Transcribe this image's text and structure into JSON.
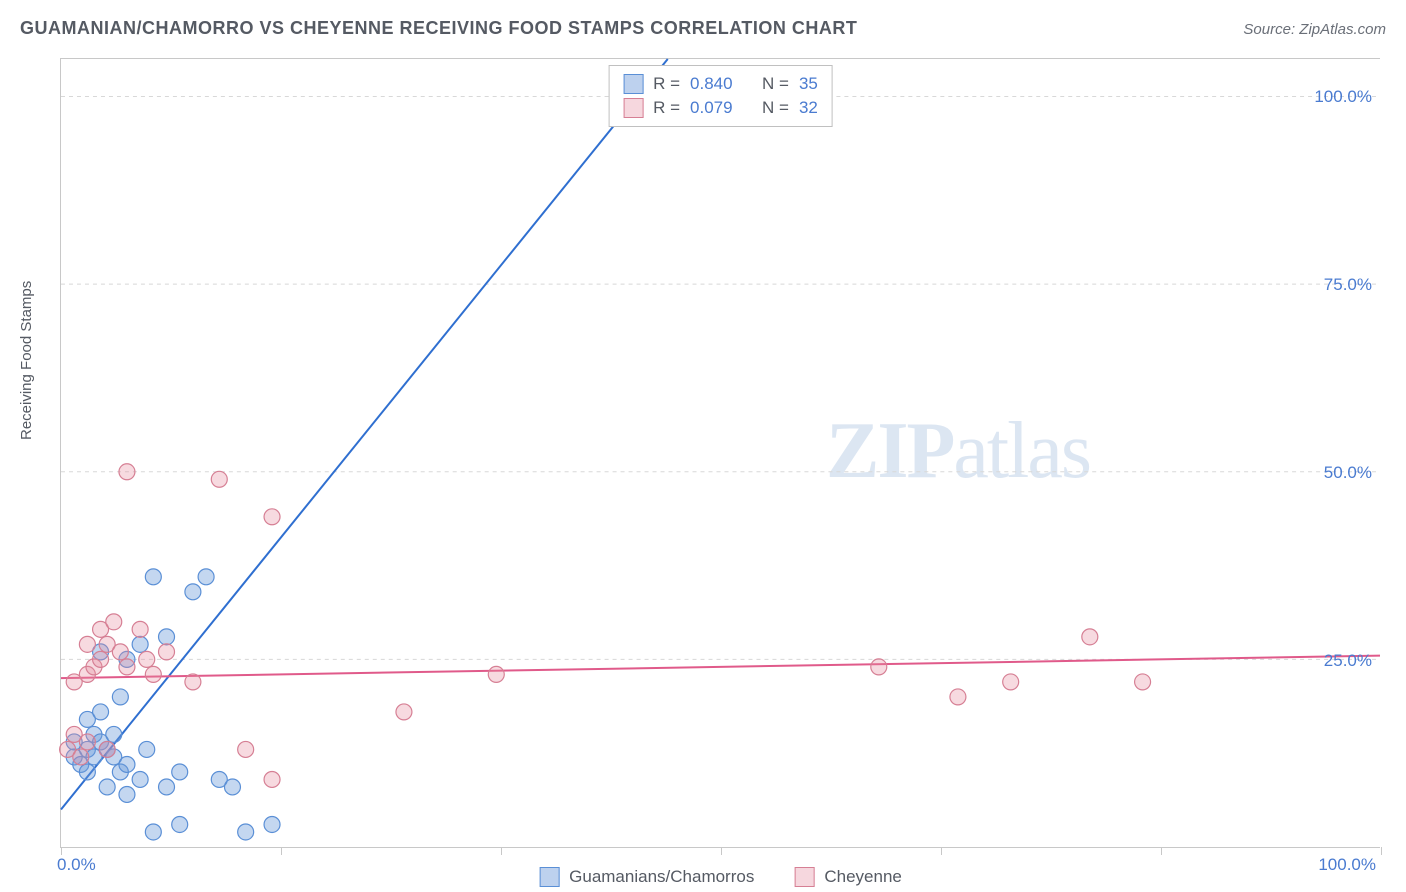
{
  "header": {
    "title": "GUAMANIAN/CHAMORRO VS CHEYENNE RECEIVING FOOD STAMPS CORRELATION CHART",
    "source_prefix": "Source: ",
    "source_name": "ZipAtlas.com"
  },
  "y_axis_label": "Receiving Food Stamps",
  "watermark": {
    "bold": "ZIP",
    "rest": "atlas"
  },
  "chart": {
    "type": "scatter",
    "xlim": [
      0,
      100
    ],
    "ylim": [
      0,
      105
    ],
    "x_ticks": [
      0,
      16.7,
      33.3,
      50,
      66.7,
      83.3,
      100
    ],
    "y_gridlines": [
      25,
      50,
      75,
      100
    ],
    "y_tick_labels": [
      "25.0%",
      "50.0%",
      "75.0%",
      "100.0%"
    ],
    "x_tick_labels": {
      "0": "0.0%",
      "100": "100.0%"
    },
    "background_color": "#ffffff",
    "grid_color": "#d8d8d8",
    "axis_color": "#c8c8c8",
    "label_color": "#4a7bd0",
    "series": [
      {
        "name": "Guamanians/Chamorros",
        "color_fill": "rgba(108,154,218,0.4)",
        "color_stroke": "#5a8fd6",
        "marker_radius": 8,
        "R": "0.840",
        "N": "35",
        "trend": {
          "x1": 0,
          "y1": 5,
          "x2": 46,
          "y2": 105,
          "color": "#2f6fd0",
          "width": 2
        },
        "points": [
          [
            1,
            12
          ],
          [
            1,
            14
          ],
          [
            1.5,
            11
          ],
          [
            2,
            10
          ],
          [
            2,
            13
          ],
          [
            2,
            17
          ],
          [
            2.5,
            15
          ],
          [
            2.5,
            12
          ],
          [
            3,
            14
          ],
          [
            3,
            18
          ],
          [
            3,
            26
          ],
          [
            3.5,
            13
          ],
          [
            3.5,
            8
          ],
          [
            4,
            12
          ],
          [
            4,
            15
          ],
          [
            4.5,
            10
          ],
          [
            4.5,
            20
          ],
          [
            5,
            11
          ],
          [
            5,
            7
          ],
          [
            5,
            25
          ],
          [
            6,
            27
          ],
          [
            6,
            9
          ],
          [
            6.5,
            13
          ],
          [
            7,
            36
          ],
          [
            7,
            2
          ],
          [
            8,
            28
          ],
          [
            8,
            8
          ],
          [
            9,
            3
          ],
          [
            9,
            10
          ],
          [
            10,
            34
          ],
          [
            11,
            36
          ],
          [
            12,
            9
          ],
          [
            13,
            8
          ],
          [
            14,
            2
          ],
          [
            16,
            3
          ]
        ]
      },
      {
        "name": "Cheyenne",
        "color_fill": "rgba(230,140,160,0.32)",
        "color_stroke": "#d67f94",
        "marker_radius": 8,
        "R": "0.079",
        "N": "32",
        "trend": {
          "x1": 0,
          "y1": 22.5,
          "x2": 100,
          "y2": 25.5,
          "color": "#e05a8a",
          "width": 2
        },
        "points": [
          [
            0.5,
            13
          ],
          [
            1,
            15
          ],
          [
            1,
            22
          ],
          [
            1.5,
            12
          ],
          [
            2,
            14
          ],
          [
            2,
            23
          ],
          [
            2,
            27
          ],
          [
            2.5,
            24
          ],
          [
            3,
            25
          ],
          [
            3,
            29
          ],
          [
            3.5,
            27
          ],
          [
            3.5,
            13
          ],
          [
            4,
            30
          ],
          [
            4.5,
            26
          ],
          [
            5,
            50
          ],
          [
            5,
            24
          ],
          [
            6,
            29
          ],
          [
            6.5,
            25
          ],
          [
            7,
            23
          ],
          [
            8,
            26
          ],
          [
            10,
            22
          ],
          [
            12,
            49
          ],
          [
            14,
            13
          ],
          [
            16,
            44
          ],
          [
            16,
            9
          ],
          [
            26,
            18
          ],
          [
            33,
            23
          ],
          [
            62,
            24
          ],
          [
            68,
            20
          ],
          [
            72,
            22
          ],
          [
            78,
            28
          ],
          [
            82,
            22
          ]
        ]
      }
    ]
  },
  "legend_top": {
    "rows": [
      {
        "swatch": "blue",
        "r_label": "R =",
        "r_val": "0.840",
        "n_label": "N =",
        "n_val": "35"
      },
      {
        "swatch": "pink",
        "r_label": "R =",
        "r_val": "0.079",
        "n_label": "N =",
        "n_val": "32"
      }
    ]
  },
  "legend_bottom": {
    "items": [
      {
        "swatch": "blue",
        "label": "Guamanians/Chamorros"
      },
      {
        "swatch": "pink",
        "label": "Cheyenne"
      }
    ]
  }
}
